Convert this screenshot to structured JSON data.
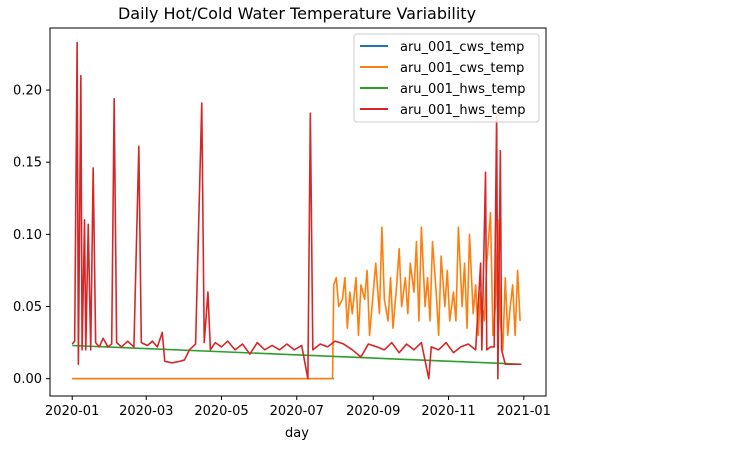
{
  "chart_data": {
    "type": "line",
    "title": "Daily Hot/Cold Water Temperature Variability",
    "xlabel": "day",
    "ylabel": "",
    "x_ticks": [
      "2020-01",
      "2020-03",
      "2020-05",
      "2020-07",
      "2020-09",
      "2020-11",
      "2021-01"
    ],
    "y_ticks": [
      "0.00",
      "0.05",
      "0.10",
      "0.15",
      "0.20"
    ],
    "xlim": [
      "2019-12-14",
      "2021-01-19"
    ],
    "ylim": [
      -0.012,
      0.243
    ],
    "grid": false,
    "legend_position": "top-right",
    "series": [
      {
        "name": "aru_001_cws_temp",
        "color": "#1f77b4",
        "points": [
          [
            "2020-01-01",
            0.0
          ],
          [
            "2020-07-31",
            0.0
          ]
        ]
      },
      {
        "name": "aru_001_cws_temp",
        "color": "#ff7f0e",
        "points": [
          [
            "2020-01-01",
            0.0
          ],
          [
            "2020-07-30",
            0.0
          ],
          [
            "2020-07-31",
            0.065
          ],
          [
            "2020-08-02",
            0.07
          ],
          [
            "2020-08-04",
            0.05
          ],
          [
            "2020-08-07",
            0.055
          ],
          [
            "2020-08-09",
            0.07
          ],
          [
            "2020-08-11",
            0.035
          ],
          [
            "2020-08-13",
            0.06
          ],
          [
            "2020-08-15",
            0.045
          ],
          [
            "2020-08-18",
            0.07
          ],
          [
            "2020-08-20",
            0.03
          ],
          [
            "2020-08-22",
            0.065
          ],
          [
            "2020-08-25",
            0.055
          ],
          [
            "2020-08-27",
            0.075
          ],
          [
            "2020-08-29",
            0.03
          ],
          [
            "2020-09-01",
            0.06
          ],
          [
            "2020-09-03",
            0.08
          ],
          [
            "2020-09-06",
            0.045
          ],
          [
            "2020-09-08",
            0.105
          ],
          [
            "2020-09-10",
            0.055
          ],
          [
            "2020-09-13",
            0.04
          ],
          [
            "2020-09-15",
            0.07
          ],
          [
            "2020-09-17",
            0.035
          ],
          [
            "2020-09-20",
            0.065
          ],
          [
            "2020-09-22",
            0.09
          ],
          [
            "2020-09-24",
            0.05
          ],
          [
            "2020-09-27",
            0.07
          ],
          [
            "2020-09-29",
            0.045
          ],
          [
            "2020-10-01",
            0.08
          ],
          [
            "2020-10-04",
            0.06
          ],
          [
            "2020-10-06",
            0.095
          ],
          [
            "2020-10-08",
            0.04
          ],
          [
            "2020-10-10",
            0.105
          ],
          [
            "2020-10-13",
            0.05
          ],
          [
            "2020-10-15",
            0.07
          ],
          [
            "2020-10-17",
            0.04
          ],
          [
            "2020-10-19",
            0.095
          ],
          [
            "2020-10-22",
            0.06
          ],
          [
            "2020-10-24",
            0.03
          ],
          [
            "2020-10-26",
            0.085
          ],
          [
            "2020-10-29",
            0.05
          ],
          [
            "2020-10-31",
            0.075
          ],
          [
            "2020-11-02",
            0.04
          ],
          [
            "2020-11-05",
            0.06
          ],
          [
            "2020-11-07",
            0.04
          ],
          [
            "2020-11-09",
            0.105
          ],
          [
            "2020-11-12",
            0.05
          ],
          [
            "2020-11-14",
            0.08
          ],
          [
            "2020-11-16",
            0.035
          ],
          [
            "2020-11-18",
            0.1
          ],
          [
            "2020-11-21",
            0.045
          ],
          [
            "2020-11-23",
            0.065
          ],
          [
            "2020-11-25",
            0.03
          ],
          [
            "2020-11-27",
            0.06
          ],
          [
            "2020-11-30",
            0.04
          ],
          [
            "2020-12-02",
            0.08
          ],
          [
            "2020-12-05",
            0.115
          ],
          [
            "2020-12-07",
            0.03
          ],
          [
            "2020-12-09",
            0.05
          ],
          [
            "2020-12-11",
            0.11
          ],
          [
            "2020-12-13",
            0.04
          ],
          [
            "2020-12-15",
            0.02
          ],
          [
            "2020-12-17",
            0.07
          ],
          [
            "2020-12-19",
            0.03
          ],
          [
            "2020-12-21",
            0.05
          ],
          [
            "2020-12-23",
            0.065
          ],
          [
            "2020-12-25",
            0.03
          ],
          [
            "2020-12-27",
            0.075
          ],
          [
            "2020-12-29",
            0.04
          ]
        ]
      },
      {
        "name": "aru_001_hws_temp",
        "color": "#2ca02c",
        "points": [
          [
            "2020-01-01",
            0.023
          ],
          [
            "2020-12-30",
            0.01
          ]
        ]
      },
      {
        "name": "aru_001_hws_temp",
        "color": "#d62728",
        "points": [
          [
            "2020-01-01",
            0.024
          ],
          [
            "2020-01-03",
            0.026
          ],
          [
            "2020-01-05",
            0.233
          ],
          [
            "2020-01-06",
            0.01
          ],
          [
            "2020-01-08",
            0.21
          ],
          [
            "2020-01-09",
            0.02
          ],
          [
            "2020-01-11",
            0.11
          ],
          [
            "2020-01-12",
            0.02
          ],
          [
            "2020-01-14",
            0.107
          ],
          [
            "2020-01-16",
            0.02
          ],
          [
            "2020-01-18",
            0.146
          ],
          [
            "2020-01-20",
            0.025
          ],
          [
            "2020-01-23",
            0.022
          ],
          [
            "2020-01-26",
            0.028
          ],
          [
            "2020-01-30",
            0.022
          ],
          [
            "2020-02-02",
            0.024
          ],
          [
            "2020-02-04",
            0.194
          ],
          [
            "2020-02-06",
            0.025
          ],
          [
            "2020-02-10",
            0.022
          ],
          [
            "2020-02-15",
            0.026
          ],
          [
            "2020-02-20",
            0.022
          ],
          [
            "2020-02-24",
            0.161
          ],
          [
            "2020-02-26",
            0.025
          ],
          [
            "2020-03-02",
            0.023
          ],
          [
            "2020-03-06",
            0.026
          ],
          [
            "2020-03-10",
            0.022
          ],
          [
            "2020-03-14",
            0.032
          ],
          [
            "2020-03-16",
            0.012
          ],
          [
            "2020-03-22",
            0.011
          ],
          [
            "2020-03-28",
            0.012
          ],
          [
            "2020-04-01",
            0.013
          ],
          [
            "2020-04-05",
            0.02
          ],
          [
            "2020-04-10",
            0.024
          ],
          [
            "2020-04-15",
            0.191
          ],
          [
            "2020-04-17",
            0.025
          ],
          [
            "2020-04-20",
            0.06
          ],
          [
            "2020-04-22",
            0.02
          ],
          [
            "2020-04-26",
            0.025
          ],
          [
            "2020-05-01",
            0.022
          ],
          [
            "2020-05-06",
            0.026
          ],
          [
            "2020-05-12",
            0.02
          ],
          [
            "2020-05-18",
            0.024
          ],
          [
            "2020-05-24",
            0.017
          ],
          [
            "2020-05-30",
            0.025
          ],
          [
            "2020-06-05",
            0.02
          ],
          [
            "2020-06-11",
            0.023
          ],
          [
            "2020-06-17",
            0.02
          ],
          [
            "2020-06-23",
            0.024
          ],
          [
            "2020-06-29",
            0.02
          ],
          [
            "2020-07-05",
            0.023
          ],
          [
            "2020-07-10",
            0.0
          ],
          [
            "2020-07-12",
            0.184
          ],
          [
            "2020-07-14",
            0.02
          ],
          [
            "2020-07-20",
            0.024
          ],
          [
            "2020-07-26",
            0.022
          ],
          [
            "2020-08-01",
            0.026
          ],
          [
            "2020-08-08",
            0.024
          ],
          [
            "2020-08-15",
            0.02
          ],
          [
            "2020-08-22",
            0.015
          ],
          [
            "2020-08-28",
            0.024
          ],
          [
            "2020-09-04",
            0.022
          ],
          [
            "2020-09-10",
            0.02
          ],
          [
            "2020-09-16",
            0.025
          ],
          [
            "2020-09-22",
            0.018
          ],
          [
            "2020-09-28",
            0.024
          ],
          [
            "2020-10-04",
            0.02
          ],
          [
            "2020-10-10",
            0.025
          ],
          [
            "2020-10-16",
            0.0
          ],
          [
            "2020-10-18",
            0.022
          ],
          [
            "2020-10-24",
            0.02
          ],
          [
            "2020-10-30",
            0.025
          ],
          [
            "2020-11-05",
            0.018
          ],
          [
            "2020-11-11",
            0.022
          ],
          [
            "2020-11-17",
            0.024
          ],
          [
            "2020-11-23",
            0.02
          ],
          [
            "2020-11-27",
            0.08
          ],
          [
            "2020-11-28",
            0.02
          ],
          [
            "2020-12-01",
            0.143
          ],
          [
            "2020-12-02",
            0.02
          ],
          [
            "2020-12-05",
            0.022
          ],
          [
            "2020-12-08",
            0.022
          ],
          [
            "2020-12-10",
            0.185
          ],
          [
            "2020-12-11",
            0.0
          ],
          [
            "2020-12-13",
            0.158
          ],
          [
            "2020-12-14",
            0.02
          ],
          [
            "2020-12-17",
            0.01
          ],
          [
            "2020-12-23",
            0.01
          ],
          [
            "2020-12-30",
            0.01
          ]
        ]
      }
    ]
  }
}
